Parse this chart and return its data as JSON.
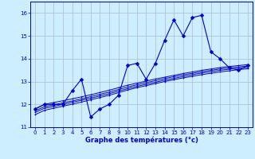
{
  "x_values": [
    0,
    1,
    2,
    3,
    4,
    5,
    6,
    7,
    8,
    9,
    10,
    11,
    12,
    13,
    14,
    15,
    16,
    17,
    18,
    19,
    20,
    21,
    22,
    23
  ],
  "y_main": [
    11.8,
    12.0,
    12.0,
    12.0,
    12.6,
    13.1,
    11.45,
    11.8,
    12.0,
    12.4,
    13.7,
    13.8,
    13.1,
    13.8,
    14.8,
    15.7,
    15.0,
    15.8,
    15.9,
    14.3,
    14.0,
    13.6,
    13.5,
    13.7
  ],
  "y_line1": [
    11.8,
    12.0,
    12.08,
    12.16,
    12.24,
    12.33,
    12.42,
    12.52,
    12.62,
    12.73,
    12.84,
    12.93,
    13.02,
    13.11,
    13.19,
    13.27,
    13.35,
    13.42,
    13.49,
    13.55,
    13.61,
    13.66,
    13.7,
    13.74
  ],
  "y_line2": [
    11.72,
    11.9,
    11.98,
    12.07,
    12.15,
    12.24,
    12.34,
    12.44,
    12.54,
    12.65,
    12.76,
    12.86,
    12.95,
    13.04,
    13.13,
    13.21,
    13.29,
    13.36,
    13.43,
    13.49,
    13.55,
    13.6,
    13.64,
    13.68
  ],
  "y_line3": [
    11.65,
    11.83,
    11.91,
    12.0,
    12.09,
    12.18,
    12.27,
    12.37,
    12.47,
    12.58,
    12.69,
    12.79,
    12.88,
    12.97,
    13.06,
    13.14,
    13.22,
    13.3,
    13.37,
    13.43,
    13.49,
    13.54,
    13.58,
    13.62
  ],
  "y_line4": [
    11.55,
    11.74,
    11.83,
    11.92,
    12.01,
    12.1,
    12.2,
    12.3,
    12.4,
    12.51,
    12.63,
    12.73,
    12.82,
    12.91,
    13.0,
    13.08,
    13.16,
    13.23,
    13.3,
    13.36,
    13.42,
    13.47,
    13.52,
    13.56
  ],
  "line_color": "#0000cc",
  "bg_color": "#cceeff",
  "grid_color": "#aabbcc",
  "xlabel": "Graphe des températures (°c)",
  "ylim": [
    11,
    16.5
  ],
  "xlim": [
    -0.5,
    23.5
  ],
  "yticks": [
    11,
    12,
    13,
    14,
    15,
    16
  ],
  "xticks": [
    0,
    1,
    2,
    3,
    4,
    5,
    6,
    7,
    8,
    9,
    10,
    11,
    12,
    13,
    14,
    15,
    16,
    17,
    18,
    19,
    20,
    21,
    22,
    23
  ]
}
